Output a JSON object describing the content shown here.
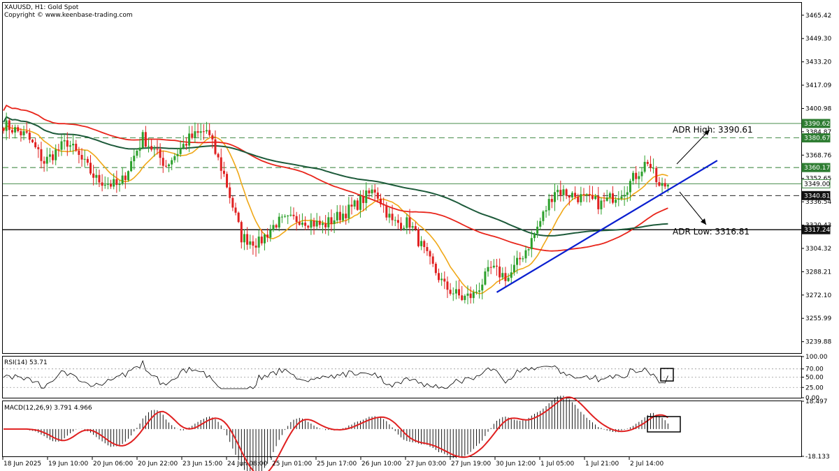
{
  "header": {
    "symbol_line": "XAUUSD, H1:  Gold Spot",
    "copyright": "Copyright © www.keenbase-trading.com"
  },
  "main_panel": {
    "y_ticks": [
      "3465.42",
      "3449.30",
      "3433.20",
      "3417.09",
      "3400.98",
      "3384.87",
      "3368.76",
      "3352.65",
      "3336.54",
      "3320.43",
      "3304.32",
      "3288.21",
      "3272.10",
      "3255.99",
      "3239.88"
    ],
    "price_tags": [
      {
        "label": "3390.62",
        "kind": "green"
      },
      {
        "label": "3380.67",
        "kind": "green"
      },
      {
        "label": "3360.17",
        "kind": "green"
      },
      {
        "label": "3349.00",
        "kind": "current"
      },
      {
        "label": "3340.81",
        "kind": "dark"
      },
      {
        "label": "3317.24",
        "kind": "dark"
      }
    ],
    "annotations": {
      "adr_high": "ADR High: 3390.61",
      "adr_low": "ADR Low: 3316.81"
    }
  },
  "rsi_panel": {
    "label": "RSI(14) 53.71",
    "y_ticks": [
      "100.00",
      "70.00",
      "50.00",
      "25.00",
      "0.00"
    ]
  },
  "macd_panel": {
    "label": "MACD(12,26,9) 3.791 4.966",
    "y_ticks": [
      "18.497",
      "-18.133"
    ]
  },
  "x_axis": {
    "labels": [
      "18 Jun 2025",
      "19 Jun 10:00",
      "20 Jun 06:00",
      "20 Jun 22:00",
      "23 Jun 15:00",
      "24 Jun 08:00",
      "25 Jun 01:00",
      "25 Jun 17:00",
      "26 Jun 10:00",
      "27 Jun 03:00",
      "27 Jun 19:00",
      "30 Jun 12:00",
      "1 Jul 05:00",
      "1 Jul 21:00",
      "2 Jul 14:00"
    ]
  },
  "colors": {
    "bull": "#2ca02c",
    "bear": "#e02020",
    "ma_fast": "#f0a818",
    "ma_mid": "#e8251b",
    "ma_slow": "#1d5a3a",
    "trendline": "#0a1fd0",
    "level_green": "#2e7d32"
  },
  "chart_data": {
    "type": "candlestick",
    "timeframe": "H1",
    "symbol": "XAUUSD",
    "ylim": [
      3232,
      3474
    ],
    "bar_count": 230,
    "anchor_closes": [
      {
        "bar": 0,
        "price": 3390
      },
      {
        "bar": 8,
        "price": 3382
      },
      {
        "bar": 14,
        "price": 3364
      },
      {
        "bar": 22,
        "price": 3378
      },
      {
        "bar": 32,
        "price": 3352
      },
      {
        "bar": 40,
        "price": 3347
      },
      {
        "bar": 48,
        "price": 3381
      },
      {
        "bar": 56,
        "price": 3362
      },
      {
        "bar": 64,
        "price": 3380
      },
      {
        "bar": 70,
        "price": 3386
      },
      {
        "bar": 76,
        "price": 3355
      },
      {
        "bar": 82,
        "price": 3312
      },
      {
        "bar": 88,
        "price": 3308
      },
      {
        "bar": 94,
        "price": 3322
      },
      {
        "bar": 102,
        "price": 3325
      },
      {
        "bar": 110,
        "price": 3320
      },
      {
        "bar": 120,
        "price": 3332
      },
      {
        "bar": 128,
        "price": 3345
      },
      {
        "bar": 134,
        "price": 3322
      },
      {
        "bar": 140,
        "price": 3322
      },
      {
        "bar": 146,
        "price": 3298
      },
      {
        "bar": 152,
        "price": 3278
      },
      {
        "bar": 158,
        "price": 3270
      },
      {
        "bar": 162,
        "price": 3272
      },
      {
        "bar": 168,
        "price": 3290
      },
      {
        "bar": 174,
        "price": 3284
      },
      {
        "bar": 182,
        "price": 3310
      },
      {
        "bar": 190,
        "price": 3345
      },
      {
        "bar": 198,
        "price": 3340
      },
      {
        "bar": 206,
        "price": 3335
      },
      {
        "bar": 214,
        "price": 3345
      },
      {
        "bar": 222,
        "price": 3365
      },
      {
        "bar": 226,
        "price": 3346
      },
      {
        "bar": 229,
        "price": 3349
      }
    ],
    "horizontal_levels": [
      {
        "price": 3390.62,
        "style": "solid",
        "color": "green"
      },
      {
        "price": 3380.67,
        "style": "dashed",
        "color": "green"
      },
      {
        "price": 3360.17,
        "style": "dashed",
        "color": "green"
      },
      {
        "price": 3349.0,
        "style": "solid",
        "color": "green"
      },
      {
        "price": 3340.81,
        "style": "dashed",
        "color": "black"
      },
      {
        "price": 3317.24,
        "style": "solid",
        "color": "black"
      }
    ],
    "trendline": {
      "from": {
        "bar": 170,
        "price": 3274
      },
      "to": {
        "bar": 246,
        "price": 3365
      }
    },
    "adr_high": 3390.61,
    "adr_low": 3316.81,
    "rsi_last": 53.71,
    "macd": {
      "main": 3.791,
      "signal": 4.966
    },
    "rsi_ylim": [
      0,
      100
    ],
    "macd_ylim": [
      -18.133,
      18.497
    ]
  }
}
